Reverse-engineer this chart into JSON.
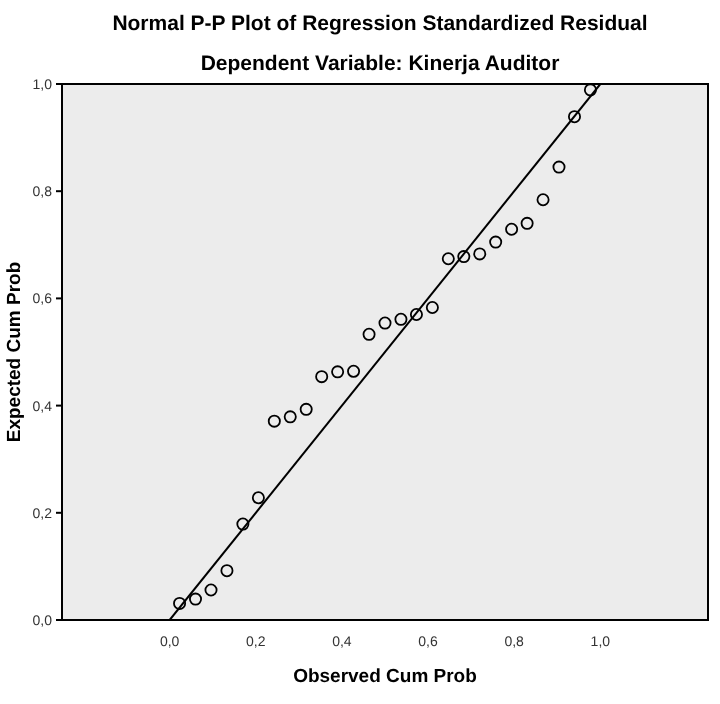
{
  "chart_data": {
    "type": "scatter",
    "title": "Normal P-P Plot of Regression Standardized Residual",
    "subtitle": "Dependent Variable: Kinerja Auditor",
    "xlabel": "Observed Cum Prob",
    "ylabel": "Expected Cum Prob",
    "xlim": [
      -0.25,
      1.25
    ],
    "ylim": [
      0,
      1
    ],
    "xticks": [
      {
        "value": 0,
        "label": "0,0"
      },
      {
        "value": 0.2,
        "label": "0,2"
      },
      {
        "value": 0.4,
        "label": "0,4"
      },
      {
        "value": 0.6,
        "label": "0,6"
      },
      {
        "value": 0.8,
        "label": "0,8"
      },
      {
        "value": 1,
        "label": "1,0"
      }
    ],
    "yticks": [
      {
        "value": 0,
        "label": "0,0"
      },
      {
        "value": 0.2,
        "label": "0,2"
      },
      {
        "value": 0.4,
        "label": "0,4"
      },
      {
        "value": 0.6,
        "label": "0,6"
      },
      {
        "value": 0.8,
        "label": "0,8"
      },
      {
        "value": 1,
        "label": "1,0"
      }
    ],
    "grid": false,
    "series": [
      {
        "marker": "circle",
        "color": "#000000",
        "x": [
          0.023,
          0.06,
          0.096,
          0.133,
          0.17,
          0.206,
          0.243,
          0.28,
          0.317,
          0.353,
          0.39,
          0.427,
          0.463,
          0.5,
          0.537,
          0.573,
          0.61,
          0.647,
          0.683,
          0.72,
          0.757,
          0.794,
          0.83,
          0.867,
          0.904,
          0.94,
          0.977
        ],
        "values": [
          0.031,
          0.039,
          0.056,
          0.092,
          0.179,
          0.228,
          0.371,
          0.379,
          0.393,
          0.454,
          0.463,
          0.464,
          0.533,
          0.554,
          0.561,
          0.57,
          0.583,
          0.674,
          0.678,
          0.683,
          0.705,
          0.729,
          0.74,
          0.784,
          0.845,
          0.939,
          0.989
        ]
      },
      {
        "type": "line",
        "marker": "none",
        "color": "#000000",
        "x": [
          0,
          1
        ],
        "values": [
          0,
          1
        ]
      }
    ]
  }
}
